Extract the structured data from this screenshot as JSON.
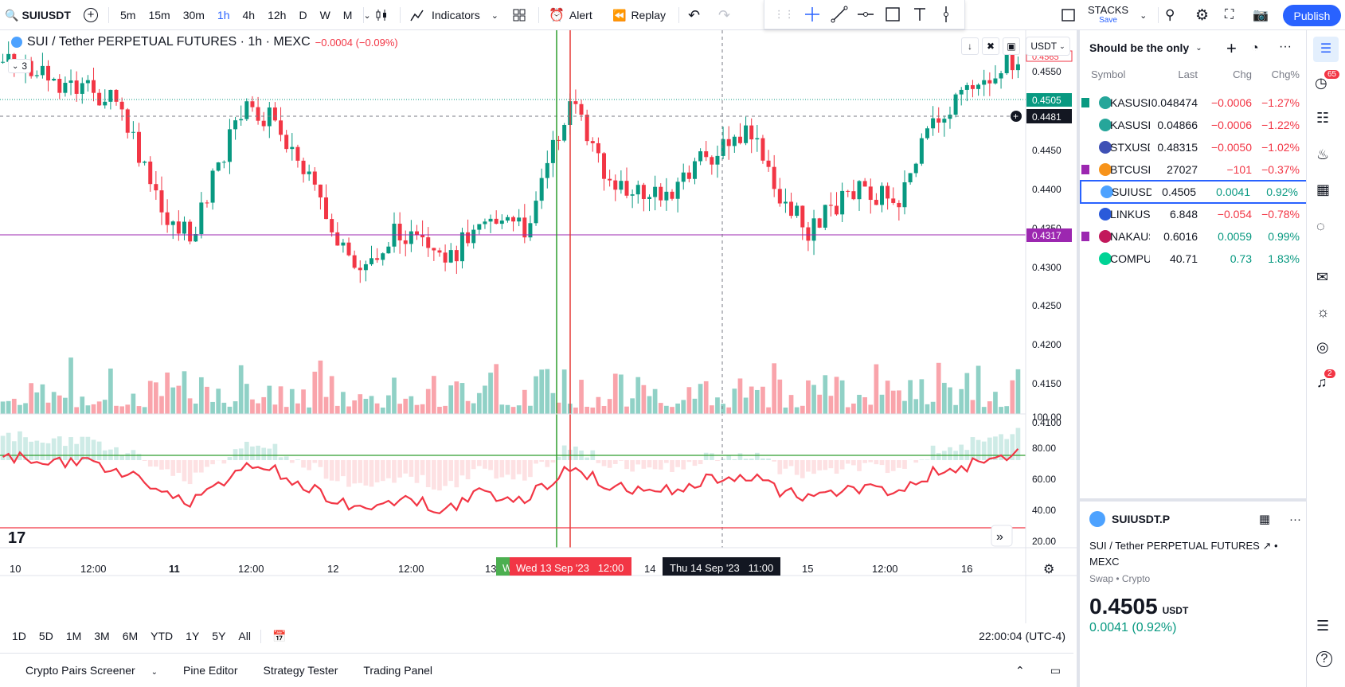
{
  "symbol": "SUIUSDT",
  "intervals": [
    "5m",
    "15m",
    "30m",
    "1h",
    "4h",
    "12h",
    "D",
    "W",
    "M"
  ],
  "active_interval": "1h",
  "toolbar": {
    "indicators": "Indicators",
    "alert": "Alert",
    "replay": "Replay",
    "layout_name": "STACKS",
    "layout_save": "Save",
    "publish": "Publish"
  },
  "legend": {
    "title": "SUI / Tether PERPETUAL FUTURES · 1h · MEXC",
    "change": "−0.0004 (−0.09%)",
    "indicator_count": "3"
  },
  "price_axis": {
    "currency": "USDT",
    "ticks": [
      "0.4550",
      "0.4450",
      "0.4400",
      "0.4350",
      "0.4300",
      "0.4250",
      "0.4200",
      "0.4150",
      "0.4100"
    ],
    "last_price": "0.4505",
    "crosshair_price": "0.4481",
    "line_price": "0.4317",
    "hidden_label": "0.4565"
  },
  "osc_axis": {
    "ticks": [
      "100.00",
      "80.00",
      "60.00",
      "40.00",
      "20.00"
    ]
  },
  "time_axis": {
    "ticks": [
      "10",
      "12:00",
      "11",
      "12:00",
      "12",
      "12:00",
      "13",
      "14",
      "15",
      "12:00",
      "16"
    ],
    "marker_red": "Wed 13 Sep '23   12:00",
    "marker_green": "W",
    "crosshair": "Thu 14 Sep '23   11:00"
  },
  "range_buttons": [
    "1D",
    "5D",
    "1M",
    "3M",
    "6M",
    "YTD",
    "1Y",
    "5Y",
    "All"
  ],
  "clock": "22:00:04 (UTC-4)",
  "bottom_tabs": [
    "Crypto Pairs Screener",
    "Pine Editor",
    "Strategy Tester",
    "Trading Panel"
  ],
  "watchlist": {
    "title": "Should be the only",
    "columns": [
      "Symbol",
      "Last",
      "Chg",
      "Chg%"
    ],
    "rows": [
      {
        "sym": "KASUSDT",
        "last": "0.048474",
        "chg": "−0.0006",
        "pct": "−1.27%",
        "dir": "neg",
        "flag": "#089981",
        "icon": "#26a69a"
      },
      {
        "sym": "KASUSDT",
        "last": "0.04866",
        "chg": "−0.0006",
        "pct": "−1.22%",
        "dir": "neg",
        "flag": "",
        "icon": "#26a69a"
      },
      {
        "sym": "STXUSDT",
        "last": "0.48315",
        "chg": "−0.0050",
        "pct": "−1.02%",
        "dir": "neg",
        "flag": "",
        "icon": "#3f51b5"
      },
      {
        "sym": "BTCUSDT",
        "last": "27027",
        "chg": "−101",
        "pct": "−0.37%",
        "dir": "neg",
        "flag": "#9c27b0",
        "icon": "#f7931a"
      },
      {
        "sym": "SUIUSDT",
        "last": "0.4505",
        "chg": "0.0041",
        "pct": "0.92%",
        "dir": "pos",
        "flag": "",
        "icon": "#4da2ff"
      },
      {
        "sym": "LINKUSDT",
        "last": "6.848",
        "chg": "−0.054",
        "pct": "−0.78%",
        "dir": "neg",
        "flag": "",
        "icon": "#2a5ada"
      },
      {
        "sym": "NAKAUSDT",
        "last": "0.6016",
        "chg": "0.0059",
        "pct": "0.99%",
        "dir": "pos",
        "flag": "#9c27b0",
        "icon": "#c2185b"
      },
      {
        "sym": "COMPUSDT",
        "last": "40.71",
        "chg": "0.73",
        "pct": "1.83%",
        "dir": "pos",
        "flag": "",
        "icon": "#00d395"
      }
    ]
  },
  "details": {
    "symbol": "SUIUSDT.P",
    "name": "SUI / Tether PERPETUAL FUTURES",
    "exchange": "MEXC",
    "type": "Swap • Crypto",
    "price": "0.4505",
    "currency": "USDT",
    "change": "0.0041 (0.92%)"
  },
  "badges": {
    "notif": "65",
    "alerts": "2"
  },
  "colors": {
    "up": "#089981",
    "down": "#f23645",
    "accent": "#2962ff"
  }
}
